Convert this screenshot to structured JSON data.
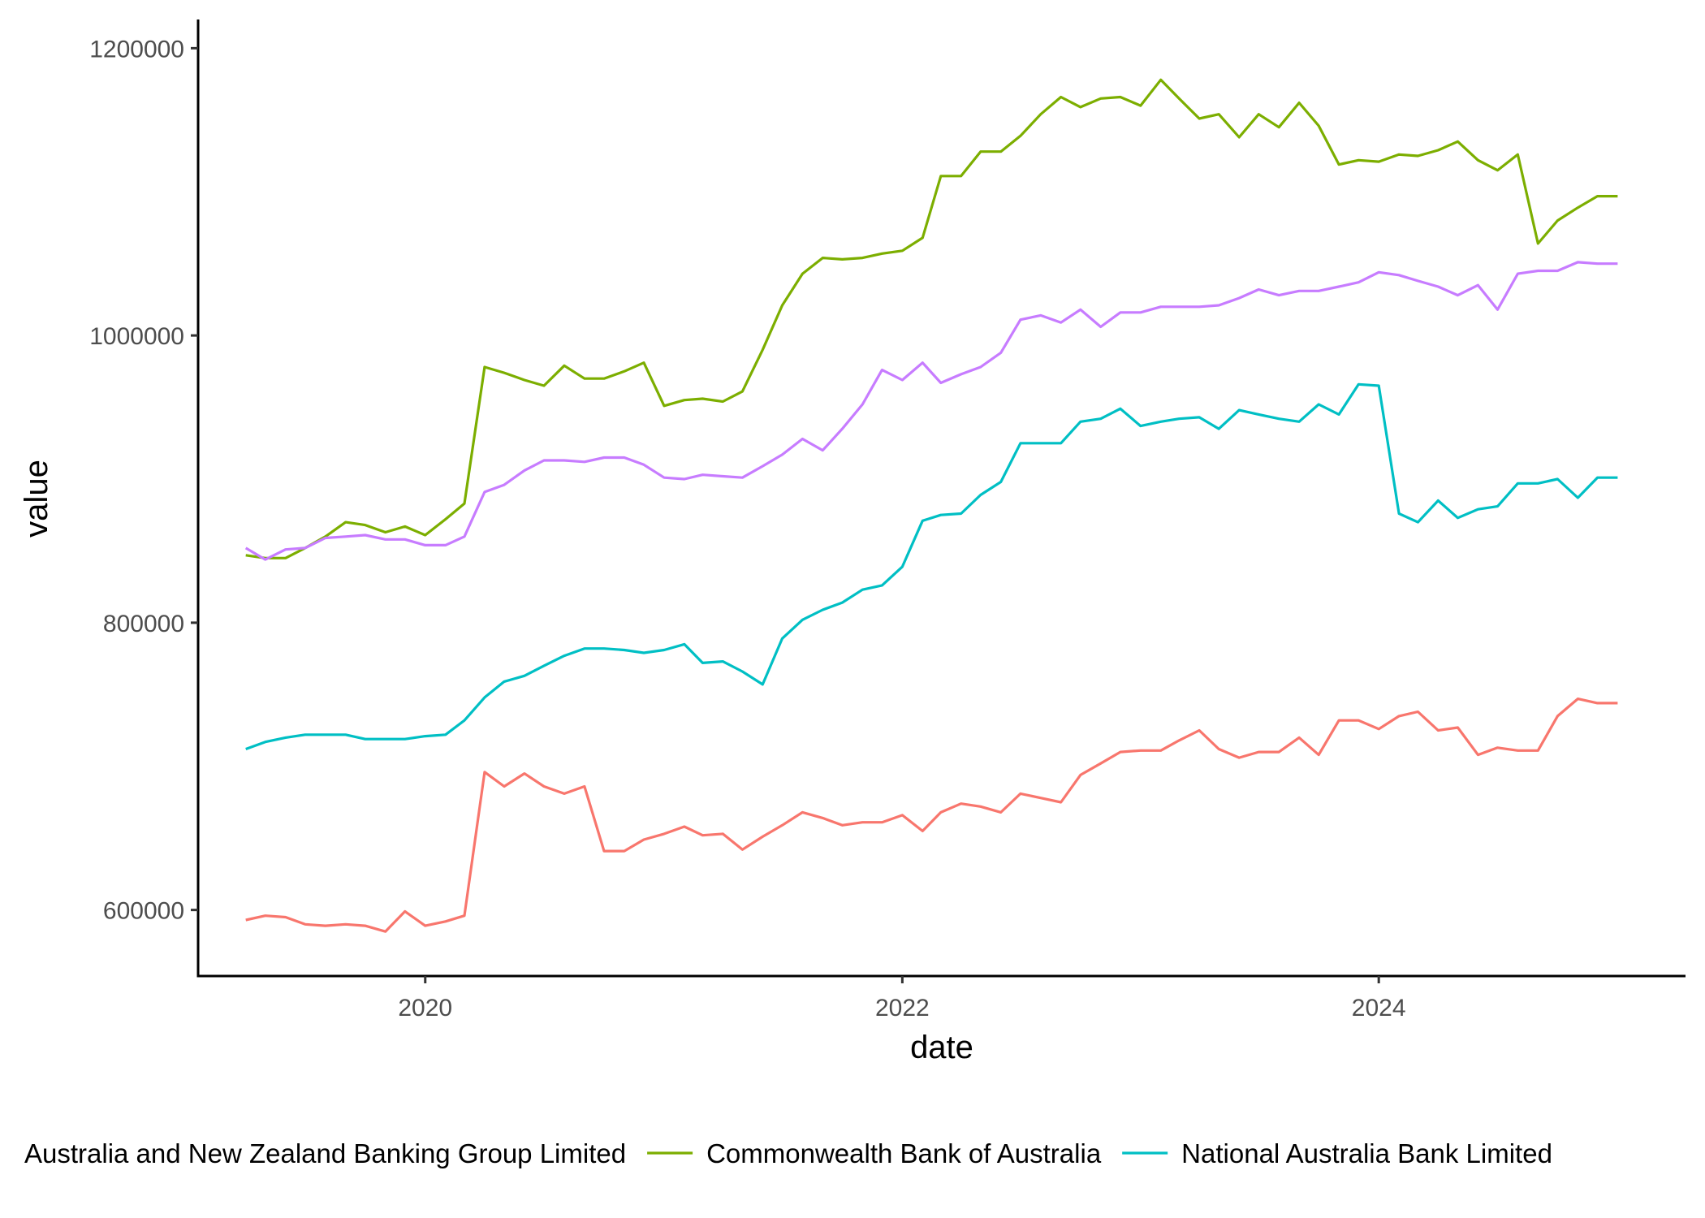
{
  "chart_data": {
    "type": "line",
    "xlabel": "date",
    "ylabel": "value",
    "x_axis_type": "date",
    "xlim": [
      "2019-01-18",
      "2025-04-15"
    ],
    "ylim": [
      554000,
      1220000
    ],
    "x_ticks": [
      "2020-01-01",
      "2022-01-01",
      "2024-01-01"
    ],
    "x_tick_labels": [
      "2020",
      "2022",
      "2024"
    ],
    "y_ticks": [
      600000,
      800000,
      1000000,
      1200000
    ],
    "y_tick_labels": [
      "600000",
      "800000",
      "1000000",
      "1200000"
    ],
    "grid": false,
    "legend_position": "bottom",
    "x": [
      "2019-04-01",
      "2019-05-01",
      "2019-06-01",
      "2019-07-01",
      "2019-08-01",
      "2019-09-01",
      "2019-10-01",
      "2019-11-01",
      "2019-12-01",
      "2020-01-01",
      "2020-02-01",
      "2020-03-01",
      "2020-04-01",
      "2020-05-01",
      "2020-06-01",
      "2020-07-01",
      "2020-08-01",
      "2020-09-01",
      "2020-10-01",
      "2020-11-01",
      "2020-12-01",
      "2021-01-01",
      "2021-02-01",
      "2021-03-01",
      "2021-04-01",
      "2021-05-01",
      "2021-06-01",
      "2021-07-01",
      "2021-08-01",
      "2021-09-01",
      "2021-10-01",
      "2021-11-01",
      "2021-12-01",
      "2022-01-01",
      "2022-02-01",
      "2022-03-01",
      "2022-04-01",
      "2022-05-01",
      "2022-06-01",
      "2022-07-01",
      "2022-08-01",
      "2022-09-01",
      "2022-10-01",
      "2022-11-01",
      "2022-12-01",
      "2023-01-01",
      "2023-02-01",
      "2023-03-01",
      "2023-04-01",
      "2023-05-01",
      "2023-06-01",
      "2023-07-01",
      "2023-08-01",
      "2023-09-01",
      "2023-10-01",
      "2023-11-01",
      "2023-12-01",
      "2024-01-01",
      "2024-02-01",
      "2024-03-01",
      "2024-04-01",
      "2024-05-01",
      "2024-06-01",
      "2024-07-01",
      "2024-08-01",
      "2024-09-01",
      "2024-10-01",
      "2024-11-01",
      "2024-12-01",
      "2025-01-01"
    ],
    "series": [
      {
        "name": "Australia and New Zealand Banking Group Limited",
        "color": "#F8766D",
        "values": [
          593000,
          596000,
          595000,
          590000,
          589000,
          590000,
          589000,
          585000,
          599000,
          589000,
          592000,
          596000,
          696000,
          686000,
          695000,
          686000,
          681000,
          686000,
          641000,
          641000,
          649000,
          653000,
          658000,
          652000,
          653000,
          642000,
          651000,
          659000,
          668000,
          664000,
          659000,
          661000,
          661000,
          666000,
          655000,
          668000,
          674000,
          672000,
          668000,
          681000,
          678000,
          675000,
          694000,
          702000,
          710000,
          711000,
          711000,
          718000,
          725000,
          712000,
          706000,
          710000,
          710000,
          720000,
          708000,
          732000,
          732000,
          726000,
          735000,
          738000,
          725000,
          727000,
          708000,
          713000,
          711000,
          711000,
          735000,
          747000,
          744000,
          744000
        ]
      },
      {
        "name": "Commonwealth Bank of Australia",
        "color": "#7CAE00",
        "values": [
          847000,
          845000,
          845000,
          852000,
          860000,
          870000,
          868000,
          863000,
          867000,
          861000,
          872000,
          883000,
          978000,
          974000,
          969000,
          965000,
          979000,
          970000,
          970000,
          975000,
          981000,
          951000,
          955000,
          956000,
          954000,
          961000,
          990000,
          1021000,
          1043000,
          1054000,
          1053000,
          1054000,
          1057000,
          1059000,
          1068000,
          1111000,
          1111000,
          1128000,
          1128000,
          1139000,
          1154000,
          1166000,
          1159000,
          1165000,
          1166000,
          1160000,
          1178000,
          1165000,
          1151000,
          1154000,
          1138000,
          1154000,
          1145000,
          1162000,
          1146000,
          1119000,
          1122000,
          1121000,
          1126000,
          1125000,
          1129000,
          1135000,
          1122000,
          1115000,
          1126000,
          1064000,
          1080000,
          1089000,
          1097000,
          1097000
        ]
      },
      {
        "name": "National Australia Bank Limited",
        "color": "#00BFC4",
        "values": [
          712000,
          717000,
          720000,
          722000,
          722000,
          722000,
          719000,
          719000,
          719000,
          721000,
          722000,
          732000,
          748000,
          759000,
          763000,
          770000,
          777000,
          782000,
          782000,
          781000,
          779000,
          781000,
          785000,
          772000,
          773000,
          766000,
          757000,
          789000,
          802000,
          809000,
          814000,
          823000,
          826000,
          839000,
          871000,
          875000,
          876000,
          889000,
          898000,
          925000,
          925000,
          925000,
          940000,
          942000,
          949000,
          937000,
          940000,
          942000,
          943000,
          935000,
          948000,
          945000,
          942000,
          940000,
          952000,
          945000,
          966000,
          965000,
          876000,
          870000,
          885000,
          873000,
          879000,
          881000,
          897000,
          897000,
          900000,
          887000,
          901000,
          901000
        ]
      },
      {
        "name": "",
        "color": "#C77CFF",
        "values": [
          852000,
          844000,
          851000,
          852000,
          859000,
          860000,
          861000,
          858000,
          858000,
          854000,
          854000,
          860000,
          891000,
          896000,
          906000,
          913000,
          913000,
          912000,
          915000,
          915000,
          910000,
          901000,
          900000,
          903000,
          902000,
          901000,
          909000,
          917000,
          928000,
          920000,
          935000,
          952000,
          976000,
          969000,
          981000,
          967000,
          973000,
          978000,
          988000,
          1011000,
          1014000,
          1009000,
          1018000,
          1006000,
          1016000,
          1016000,
          1020000,
          1020000,
          1020000,
          1021000,
          1026000,
          1032000,
          1028000,
          1031000,
          1031000,
          1034000,
          1037000,
          1044000,
          1042000,
          1038000,
          1034000,
          1028000,
          1035000,
          1018000,
          1043000,
          1045000,
          1045000,
          1051000,
          1050000,
          1050000
        ]
      }
    ]
  }
}
